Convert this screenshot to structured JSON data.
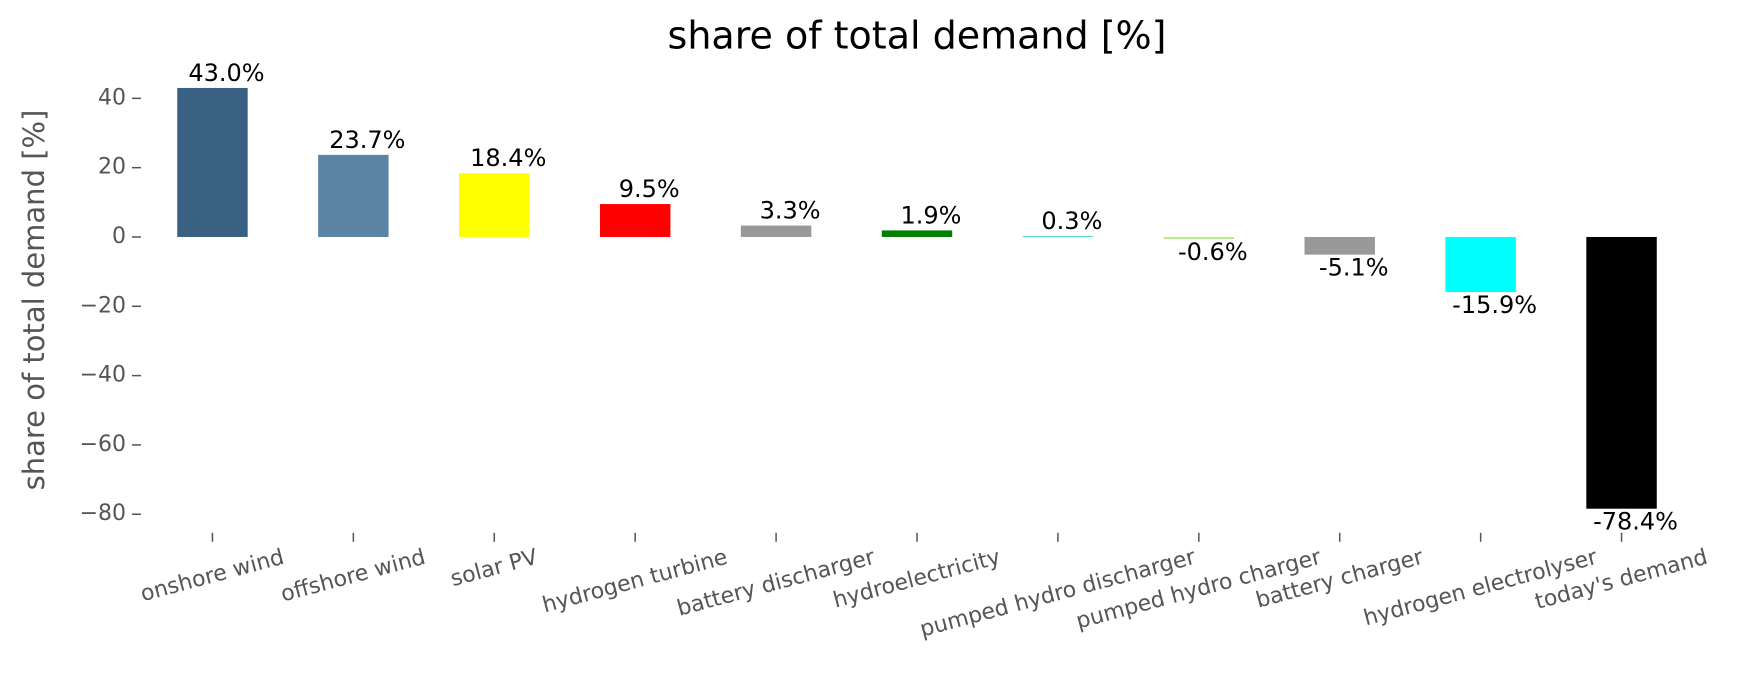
{
  "chart_data": {
    "type": "bar",
    "title": "share of total demand [%]",
    "y_label": "share of total demand [%]",
    "categories": [
      "onshore wind",
      "offshore wind",
      "solar PV",
      "hydrogen turbine",
      "battery discharger",
      "hydroelectricity",
      "pumped hydro discharger",
      "pumped hydro charger",
      "battery charger",
      "hydrogen electrolyser",
      "today's demand"
    ],
    "values": [
      43.0,
      23.7,
      18.4,
      9.5,
      3.3,
      1.9,
      0.3,
      -0.6,
      -5.1,
      -15.9,
      -78.4
    ],
    "value_labels": [
      "43.0%",
      "23.7%",
      "18.4%",
      "9.5%",
      "3.3%",
      "1.9%",
      "0.3%",
      "-0.6%",
      "-5.1%",
      "-15.9%",
      "-78.4%"
    ],
    "colors": [
      "#3b6182",
      "#5b83a3",
      "#ffff00",
      "#ff0000",
      "#999999",
      "#008000",
      "#51dbcc",
      "#bbee88",
      "#999999",
      "#00ffff",
      "#000000"
    ],
    "ylim": [
      -84.2,
      47.4
    ],
    "yticks": [
      {
        "value": -80,
        "label": "−80"
      },
      {
        "value": -60,
        "label": "−60"
      },
      {
        "value": -40,
        "label": "−40"
      },
      {
        "value": -20,
        "label": "−20"
      },
      0,
      20,
      40
    ],
    "grid": false
  }
}
